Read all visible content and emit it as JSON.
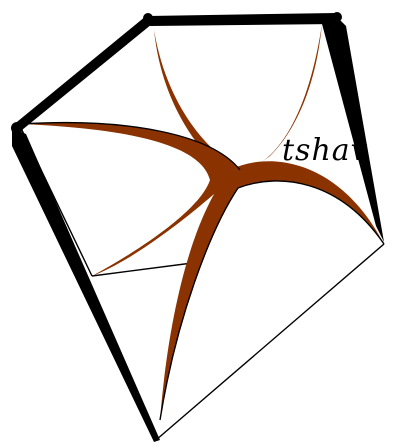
{
  "logo": {
    "wordmark": "tshav",
    "colors": {
      "outline": "#000000",
      "fill": "#8b3300",
      "background": "#ffffff"
    }
  }
}
